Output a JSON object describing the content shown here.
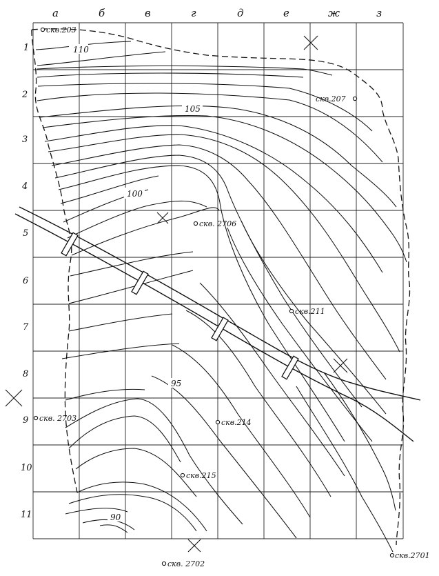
{
  "map": {
    "columns": [
      "а",
      "б",
      "в",
      "г",
      "д",
      "е",
      "ж",
      "з"
    ],
    "rows": [
      "1",
      "2",
      "3",
      "4",
      "5",
      "6",
      "7",
      "8",
      "9",
      "10",
      "11"
    ],
    "contour_labels": [
      "110",
      "105",
      "100",
      "95",
      "90"
    ],
    "wells": [
      {
        "id": "w203",
        "label": "скв.203"
      },
      {
        "id": "w207",
        "label": "скв.207"
      },
      {
        "id": "w2706",
        "label": "скв. 2706"
      },
      {
        "id": "w211",
        "label": "скв.211"
      },
      {
        "id": "w2703",
        "label": "скв. 2703"
      },
      {
        "id": "w214",
        "label": "скв.214"
      },
      {
        "id": "w215",
        "label": "скв.215"
      },
      {
        "id": "w2702",
        "label": "скв. 2702"
      },
      {
        "id": "w2701",
        "label": "скв.2701"
      }
    ]
  }
}
